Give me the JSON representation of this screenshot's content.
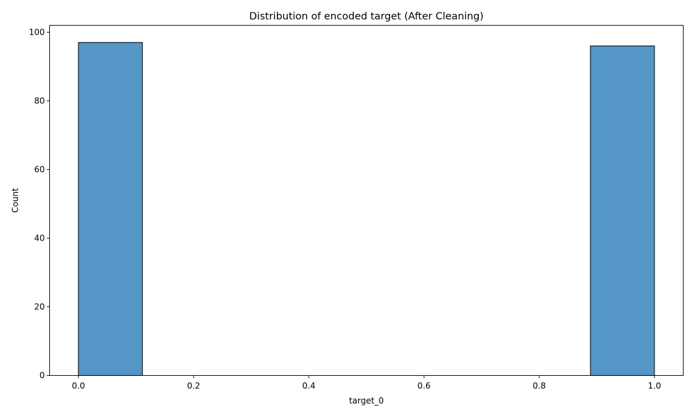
{
  "chart_data": {
    "type": "bar",
    "title": "Distribution of encoded target (After Cleaning)",
    "xlabel": "target_0",
    "ylabel": "Count",
    "xlim": [
      -0.05,
      1.05
    ],
    "ylim": [
      0,
      102
    ],
    "xticks": [
      0.0,
      0.2,
      0.4,
      0.6,
      0.8,
      1.0
    ],
    "xtick_labels": [
      "0.0",
      "0.2",
      "0.4",
      "0.6",
      "0.8",
      "1.0"
    ],
    "yticks": [
      0,
      20,
      40,
      60,
      80,
      100
    ],
    "ytick_labels": [
      "0",
      "20",
      "40",
      "60",
      "80",
      "100"
    ],
    "bins": [
      {
        "x0": 0.0,
        "x1": 0.1111,
        "count": 97
      },
      {
        "x0": 0.1111,
        "x1": 0.2222,
        "count": 0
      },
      {
        "x0": 0.2222,
        "x1": 0.3333,
        "count": 0
      },
      {
        "x0": 0.3333,
        "x1": 0.4444,
        "count": 0
      },
      {
        "x0": 0.4444,
        "x1": 0.5556,
        "count": 0
      },
      {
        "x0": 0.5556,
        "x1": 0.6667,
        "count": 0
      },
      {
        "x0": 0.6667,
        "x1": 0.7778,
        "count": 0
      },
      {
        "x0": 0.7778,
        "x1": 0.8889,
        "count": 0
      },
      {
        "x0": 0.8889,
        "x1": 1.0,
        "count": 96
      }
    ],
    "bar_color": "#5497c7",
    "edge_color": "#000000",
    "grid": false,
    "legend": "none"
  }
}
